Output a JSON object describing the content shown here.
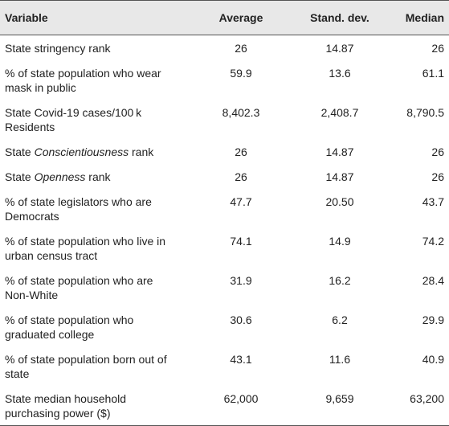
{
  "table": {
    "header": [
      "Variable",
      "Average",
      "Stand. dev.",
      "Median"
    ],
    "rows": [
      {
        "variable": [
          "State stringency rank"
        ],
        "values": [
          "26",
          "14.87",
          "26"
        ]
      },
      {
        "variable": [
          "% of state population who wear",
          "mask in public"
        ],
        "values": [
          "59.9",
          "13.6",
          "61.1"
        ]
      },
      {
        "variable": [
          "State Covid-19 cases/100 k",
          "Residents"
        ],
        "values": [
          "8,402.3",
          "2,408.7",
          "8,790.5"
        ]
      },
      {
        "variable": [
          [
            {
              "text": "State "
            },
            {
              "text": "Conscientiousness",
              "italic": true
            },
            {
              "text": " rank"
            }
          ]
        ],
        "values": [
          "26",
          "14.87",
          "26"
        ]
      },
      {
        "variable": [
          [
            {
              "text": "State "
            },
            {
              "text": "Openness",
              "italic": true
            },
            {
              "text": " rank"
            }
          ]
        ],
        "values": [
          "26",
          "14.87",
          "26"
        ]
      },
      {
        "variable": [
          "% of state legislators who are",
          "Democrats"
        ],
        "values": [
          "47.7",
          "20.50",
          "43.7"
        ]
      },
      {
        "variable": [
          "% of state population who live in",
          "urban census tract"
        ],
        "values": [
          "74.1",
          "14.9",
          "74.2"
        ]
      },
      {
        "variable": [
          "% of state population who are",
          "Non-White"
        ],
        "values": [
          "31.9",
          "16.2",
          "28.4"
        ]
      },
      {
        "variable": [
          "% of state population who",
          "graduated college"
        ],
        "values": [
          "30.6",
          "6.2",
          "29.9"
        ]
      },
      {
        "variable": [
          "% of state population born out of",
          "state"
        ],
        "values": [
          "43.1",
          "11.6",
          "40.9"
        ]
      },
      {
        "variable": [
          "State median household",
          "purchasing power ($)"
        ],
        "values": [
          "62,000",
          "9,659",
          "63,200"
        ]
      }
    ]
  }
}
